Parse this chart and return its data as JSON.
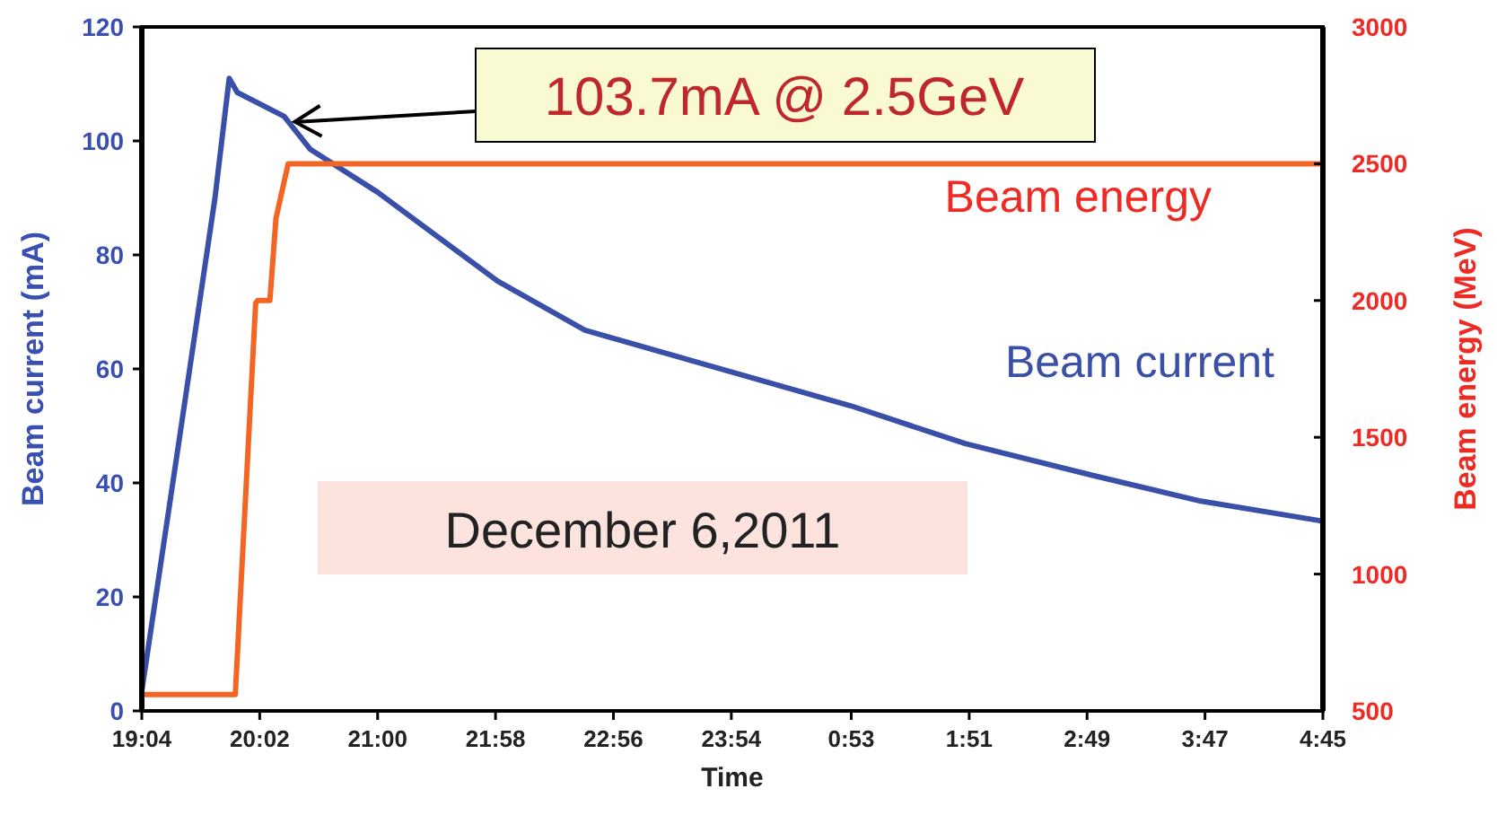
{
  "chart_data": {
    "type": "line",
    "xlabel": "Time",
    "ylabel": "Beam current (mA)",
    "y2label": "Beam energy (MeV)",
    "xlim": [
      "2011-12-06T19:04",
      "2011-12-07T04:45"
    ],
    "xticks": [
      {
        "value": "2011-12-06T19:04",
        "label": "19:04"
      },
      {
        "value": "2011-12-06T20:02",
        "label": "20:02"
      },
      {
        "value": "2011-12-06T21:00",
        "label": "21:00"
      },
      {
        "value": "2011-12-06T21:58",
        "label": "21:58"
      },
      {
        "value": "2011-12-06T22:56",
        "label": "22:56"
      },
      {
        "value": "2011-12-06T23:54",
        "label": "23:54"
      },
      {
        "value": "2011-12-07T00:53",
        "label": "0:53"
      },
      {
        "value": "2011-12-07T01:51",
        "label": "1:51"
      },
      {
        "value": "2011-12-07T02:49",
        "label": "2:49"
      },
      {
        "value": "2011-12-07T03:47",
        "label": "3:47"
      },
      {
        "value": "2011-12-07T04:45",
        "label": "4:45"
      }
    ],
    "ylim": [
      0,
      120
    ],
    "yticks": [
      0,
      20,
      40,
      60,
      80,
      100,
      120
    ],
    "y2lim": [
      500,
      3000
    ],
    "y2ticks": [
      500,
      1000,
      1500,
      2000,
      2500,
      3000
    ],
    "grid": false,
    "marker": "none",
    "line_style": "solid",
    "series": [
      {
        "name": "Beam current",
        "color": "#3a4fa8",
        "x": [
          "2011-12-06T19:04",
          "2011-12-06T19:23",
          "2011-12-06T19:40",
          "2011-12-06T19:47",
          "2011-12-06T19:51",
          "2011-12-06T20:14",
          "2011-12-06T20:27",
          "2011-12-06T21:00",
          "2011-12-06T21:59",
          "2011-12-06T22:42",
          "2011-12-06T23:35",
          "2011-12-07T00:53",
          "2011-12-07T01:49",
          "2011-12-07T02:52",
          "2011-12-07T03:45",
          "2011-12-07T04:43",
          "2011-12-07T04:45"
        ],
        "values": [
          3.5,
          49,
          90,
          111,
          108.5,
          104.3,
          98.5,
          91,
          75.4,
          66.8,
          61.4,
          53.5,
          46.9,
          41.3,
          36.8,
          33.4,
          33.3
        ]
      },
      {
        "name": "Beam energy",
        "color": "#f26522",
        "axis": "y2",
        "x": [
          "2011-12-06T19:04",
          "2011-12-06T19:50",
          "2011-12-06T20:00",
          "2011-12-06T20:01",
          "2011-12-06T20:07",
          "2011-12-06T20:10",
          "2011-12-06T20:16",
          "2011-12-07T04:45"
        ],
        "values": [
          560,
          560,
          1990,
          2000,
          2000,
          2300,
          2500,
          2500
        ]
      }
    ],
    "annotations": [
      {
        "text": "103.7mA @ 2.5GeV",
        "x": "2011-12-06T20:14",
        "y": 104.3
      },
      "December 6,2011"
    ]
  }
}
